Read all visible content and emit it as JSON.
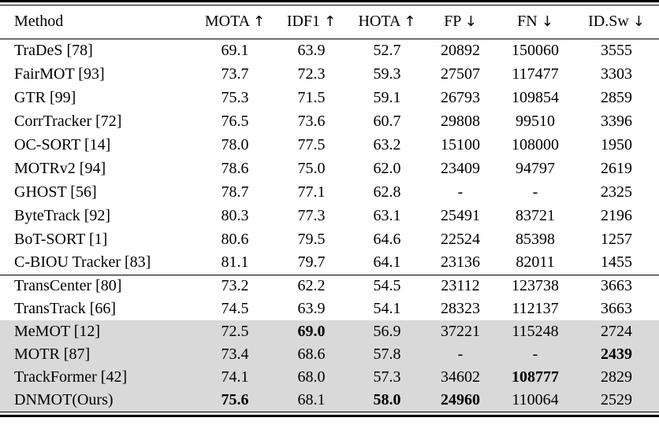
{
  "colors": {
    "highlight_bg": "#d9d9d9",
    "rule": "#000000",
    "text": "#000000",
    "background": "#ffffff"
  },
  "table": {
    "columns": [
      {
        "label": "Method",
        "arrow": ""
      },
      {
        "label": "MOTA",
        "arrow": "↑"
      },
      {
        "label": "IDF1",
        "arrow": "↑"
      },
      {
        "label": "HOTA",
        "arrow": "↑"
      },
      {
        "label": "FP",
        "arrow": "↓"
      },
      {
        "label": "FN",
        "arrow": "↓"
      },
      {
        "label": "ID.Sw",
        "arrow": "↓"
      }
    ],
    "sections": [
      {
        "rows": [
          {
            "method": "TraDeS [78]",
            "values": [
              "69.1",
              "63.9",
              "52.7",
              "20892",
              "150060",
              "3555"
            ],
            "bold": [],
            "highlight": false
          },
          {
            "method": "FairMOT [93]",
            "values": [
              "73.7",
              "72.3",
              "59.3",
              "27507",
              "117477",
              "3303"
            ],
            "bold": [],
            "highlight": false
          },
          {
            "method": "GTR [99]",
            "values": [
              "75.3",
              "71.5",
              "59.1",
              "26793",
              "109854",
              "2859"
            ],
            "bold": [],
            "highlight": false
          },
          {
            "method": "CorrTracker [72]",
            "values": [
              "76.5",
              "73.6",
              "60.7",
              "29808",
              "99510",
              "3396"
            ],
            "bold": [],
            "highlight": false
          },
          {
            "method": "OC-SORT [14]",
            "values": [
              "78.0",
              "77.5",
              "63.2",
              "15100",
              "108000",
              "1950"
            ],
            "bold": [],
            "highlight": false
          },
          {
            "method": "MOTRv2 [94]",
            "values": [
              "78.6",
              "75.0",
              "62.0",
              "23409",
              "94797",
              "2619"
            ],
            "bold": [],
            "highlight": false
          },
          {
            "method": "GHOST [56]",
            "values": [
              "78.7",
              "77.1",
              "62.8",
              "-",
              "-",
              "2325"
            ],
            "bold": [],
            "highlight": false
          },
          {
            "method": "ByteTrack [92]",
            "values": [
              "80.3",
              "77.3",
              "63.1",
              "25491",
              "83721",
              "2196"
            ],
            "bold": [],
            "highlight": false
          },
          {
            "method": "BoT-SORT [1]",
            "values": [
              "80.6",
              "79.5",
              "64.6",
              "22524",
              "85398",
              "1257"
            ],
            "bold": [],
            "highlight": false
          },
          {
            "method": "C-BIOU Tracker [83]",
            "values": [
              "81.1",
              "79.7",
              "64.1",
              "23136",
              "82011",
              "1455"
            ],
            "bold": [],
            "highlight": false
          }
        ]
      },
      {
        "rows": [
          {
            "method": "TransCenter [80]",
            "values": [
              "73.2",
              "62.2",
              "54.5",
              "23112",
              "123738",
              "3663"
            ],
            "bold": [],
            "highlight": false
          },
          {
            "method": "TransTrack [66]",
            "values": [
              "74.5",
              "63.9",
              "54.1",
              "28323",
              "112137",
              "3663"
            ],
            "bold": [],
            "highlight": false
          },
          {
            "method": "MeMOT [12]",
            "values": [
              "72.5",
              "69.0",
              "56.9",
              "37221",
              "115248",
              "2724"
            ],
            "bold": [
              1
            ],
            "highlight": true
          },
          {
            "method": "MOTR [87]",
            "values": [
              "73.4",
              "68.6",
              "57.8",
              "-",
              "-",
              "2439"
            ],
            "bold": [
              5
            ],
            "highlight": true
          },
          {
            "method": "TrackFormer [42]",
            "values": [
              "74.1",
              "68.0",
              "57.3",
              "34602",
              "108777",
              "2829"
            ],
            "bold": [
              4
            ],
            "highlight": true
          },
          {
            "method": "DNMOT(Ours)",
            "values": [
              "75.6",
              "68.1",
              "58.0",
              "24960",
              "110064",
              "2529"
            ],
            "bold": [
              0,
              2,
              3
            ],
            "highlight": true
          }
        ]
      }
    ]
  }
}
